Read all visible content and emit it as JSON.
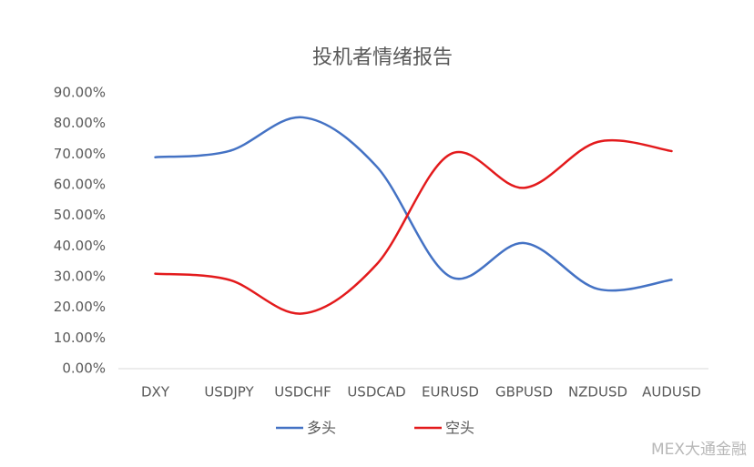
{
  "chart_data": {
    "type": "line",
    "title": "投机者情绪报告",
    "categories": [
      "DXY",
      "USDJPY",
      "USDCHF",
      "USDCAD",
      "EURUSD",
      "GBPUSD",
      "NZDUSD",
      "AUDUSD"
    ],
    "series": [
      {
        "name": "多头",
        "color": "#4472c4",
        "values": [
          69,
          71,
          82,
          66,
          30,
          41,
          26,
          29
        ]
      },
      {
        "name": "空头",
        "color": "#e31a1c",
        "values": [
          31,
          29,
          18,
          34,
          70,
          59,
          74,
          71
        ]
      }
    ],
    "ylim": [
      0,
      90
    ],
    "yticks": [
      {
        "value": 0,
        "label": "0.00%"
      },
      {
        "value": 10,
        "label": "10.00%"
      },
      {
        "value": 20,
        "label": "20.00%"
      },
      {
        "value": 30,
        "label": "30.00%"
      },
      {
        "value": 40,
        "label": "40.00%"
      },
      {
        "value": 50,
        "label": "50.00%"
      },
      {
        "value": 60,
        "label": "60.00%"
      },
      {
        "value": 70,
        "label": "70.00%"
      },
      {
        "value": 80,
        "label": "80.00%"
      },
      {
        "value": 90,
        "label": "90.00%"
      }
    ],
    "grid": false,
    "smooth": true,
    "legend": "bottom",
    "watermark": "MEX大通金融"
  }
}
